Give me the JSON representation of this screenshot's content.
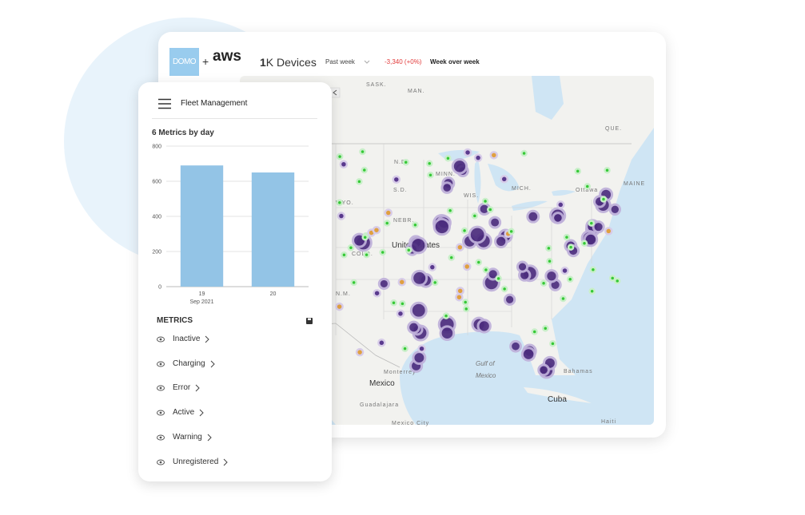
{
  "header": {
    "logo": "DOMO",
    "plus": "+",
    "partner": "aws",
    "device_count": "1",
    "device_unit": "K Devices",
    "period": "Past week",
    "change": "-3,340 (+0%)",
    "comparison": "Week over week"
  },
  "panel": {
    "title": "Fleet Management",
    "metrics_heading": "METRICS",
    "metrics": [
      "Inactive",
      "Charging",
      "Error",
      "Active",
      "Warning",
      "Unregistered"
    ]
  },
  "chart_data": {
    "type": "bar",
    "title": "6 Metrics by day",
    "categories": [
      "19",
      "20"
    ],
    "x_sublabel": "Sep 2021",
    "values": [
      690,
      650
    ],
    "color": "#93c4e6",
    "ylim": [
      0,
      800
    ],
    "yticks": [
      0,
      200,
      400,
      600,
      800
    ],
    "grid": true
  },
  "map": {
    "labels": [
      "SASK.",
      "MAN.",
      "N.D.",
      "MINN.",
      "S.D.",
      "WIS.",
      "MICH.",
      "WYO.",
      "NEBR.",
      "COLO.",
      "United States",
      "N.M.",
      "Ottawa",
      "QUE.",
      "MAINE",
      "Gulf of",
      "Mexico",
      "Mexico",
      "Monterrey",
      "Guadalajara",
      "Mexico City",
      "Cuba",
      "Bahamas",
      "Haiti"
    ]
  }
}
